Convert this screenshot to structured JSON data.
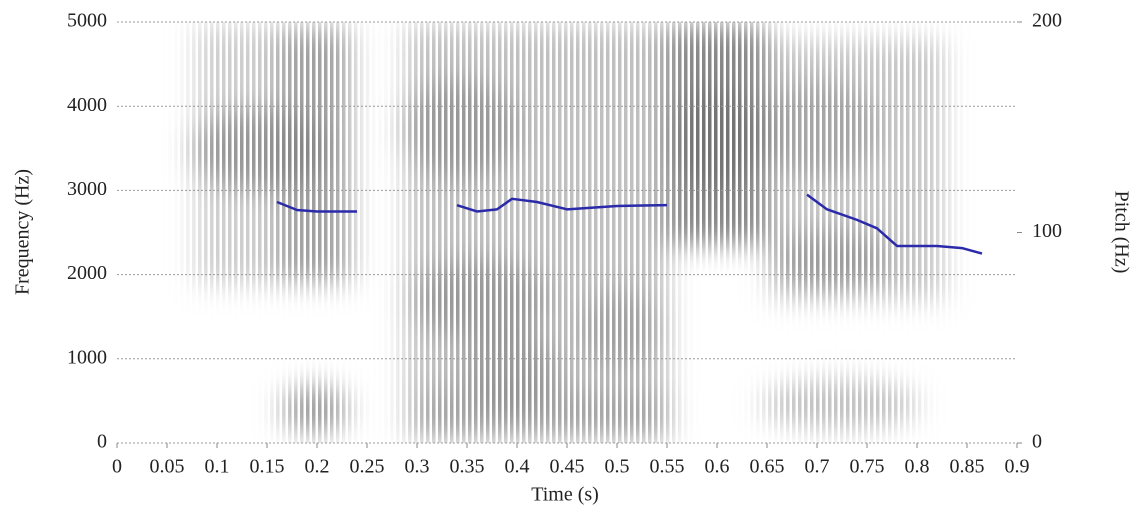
{
  "chart_data": {
    "type": "line",
    "x_label": "Time (s)",
    "y_label": "Frequency (Hz)",
    "y2_label": "Pitch (Hz)",
    "xlim": [
      0,
      0.9
    ],
    "xticks": [
      0,
      0.05,
      0.1,
      0.15,
      0.2,
      0.25,
      0.3,
      0.35,
      0.4,
      0.45,
      0.5,
      0.55,
      0.6,
      0.65,
      0.7,
      0.75,
      0.8,
      0.85,
      0.9
    ],
    "ylim": [
      0,
      5000
    ],
    "yticks": [
      0,
      1000,
      2000,
      3000,
      4000,
      5000
    ],
    "grid": true,
    "y2lim": [
      0,
      200
    ],
    "y2ticks": [
      0,
      100,
      200
    ],
    "x": [
      0.16,
      0.18,
      0.2,
      0.22,
      0.24,
      null,
      0.34,
      0.36,
      0.38,
      0.395,
      0.42,
      0.45,
      0.5,
      0.55,
      null,
      0.69,
      0.71,
      0.74,
      0.76,
      0.78,
      0.82,
      0.845,
      0.865
    ],
    "series": [
      {
        "color": "#2a2aaa",
        "axis": "y2",
        "values": [
          114.5,
          110.7,
          110,
          110,
          110,
          null,
          113,
          110,
          111,
          116,
          114.5,
          111,
          112.6,
          113,
          null,
          118,
          111,
          106,
          102,
          93.6,
          93.6,
          92.6,
          90
        ]
      }
    ]
  }
}
